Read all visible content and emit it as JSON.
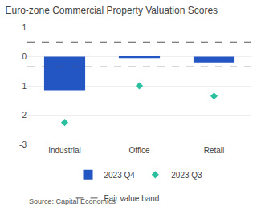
{
  "chart_data": {
    "type": "bar",
    "title": "Euro-zone Commercial Property Valuation Scores",
    "categories": [
      "Industrial",
      "Office",
      "Retail"
    ],
    "series": [
      {
        "name": "2023 Q4",
        "type": "bar",
        "color": "#2355c3",
        "values": [
          -1.15,
          -0.05,
          -0.2
        ]
      },
      {
        "name": "2023 Q3",
        "type": "scatter",
        "marker": "diamond",
        "color": "#2abf9e",
        "values": [
          -2.25,
          -1.0,
          -1.35
        ]
      }
    ],
    "reference_lines": [
      {
        "name": "Fair value band",
        "values": [
          0.5,
          -0.35
        ],
        "color": "#555555",
        "line_style": "dashed"
      }
    ],
    "ylim": [
      -3,
      1
    ],
    "yticks": [
      -3,
      -2,
      -1,
      0,
      1
    ],
    "grid": true,
    "legend": "bottom",
    "annotations": [
      "Source: Capital Economics"
    ]
  }
}
